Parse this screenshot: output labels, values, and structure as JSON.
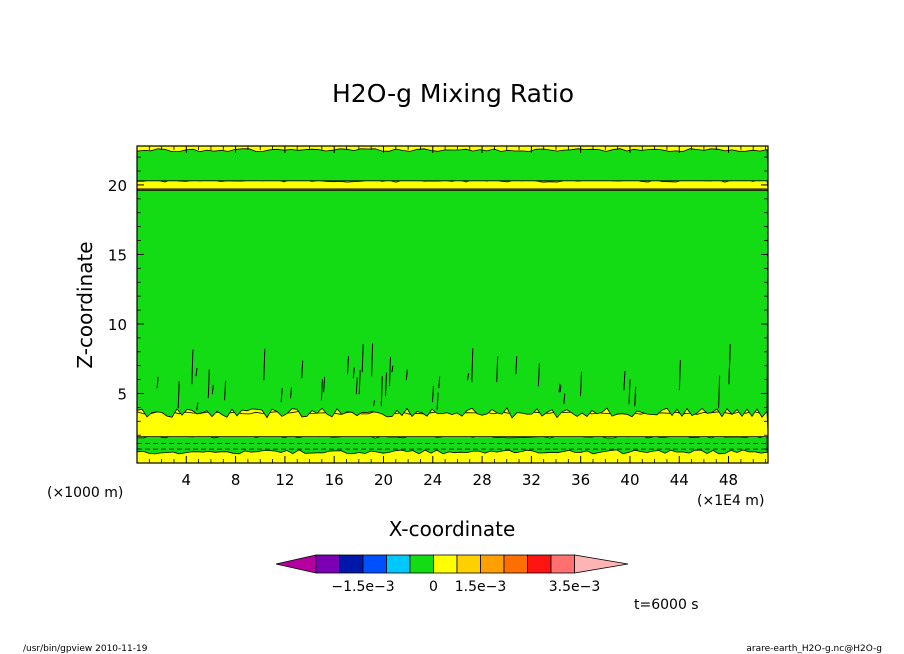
{
  "chart_data": {
    "type": "heatmap",
    "title": "H2O-g Mixing Ratio",
    "xlabel": "X-coordinate",
    "ylabel": "Z-coordinate",
    "x_unit_left": "(×1000 m)",
    "x_unit_right": "(×1E4 m)",
    "x_ticks": [
      4,
      8,
      12,
      16,
      20,
      24,
      28,
      32,
      36,
      40,
      44,
      48
    ],
    "y_ticks": [
      5,
      10,
      15,
      20
    ],
    "xlim": [
      0,
      51.2
    ],
    "ylim": [
      0,
      22.8
    ],
    "time_label": "t=6000 s",
    "colorbar": {
      "colors": [
        "#b4009f",
        "#7b00b4",
        "#0018a8",
        "#0050ff",
        "#00c8ff",
        "#14dc14",
        "#ffff00",
        "#ffd000",
        "#ffa000",
        "#ff6e00",
        "#ff1414",
        "#ff7070",
        "#ffb4b4"
      ],
      "tick_labels": [
        "−1.5e−3",
        "0",
        "1.5e−3",
        "3.5e−3"
      ]
    },
    "bands": [
      {
        "z0": 0.8,
        "z1": 1.9,
        "fill": "#14dc14",
        "label": "0"
      },
      {
        "z0": 1.9,
        "z1": 3.6,
        "fill": "#ffff00",
        "label": "1.5e-3"
      },
      {
        "z0": 3.6,
        "z1": 19.6,
        "fill": "#14dc14",
        "label": "0"
      },
      {
        "z0": 19.6,
        "z1": 20.3,
        "fill": "#ffff00",
        "label": "1.5e-3"
      },
      {
        "z0": 20.3,
        "z1": 22.5,
        "fill": "#14dc14",
        "label": "0"
      }
    ],
    "colors": {
      "green": "#14dc14",
      "yellow": "#ffff00"
    }
  },
  "footer": {
    "left": "/usr/bin/gpview  2010-11-19",
    "right": "arare-earth_H2O-g.nc@H2O-g"
  }
}
